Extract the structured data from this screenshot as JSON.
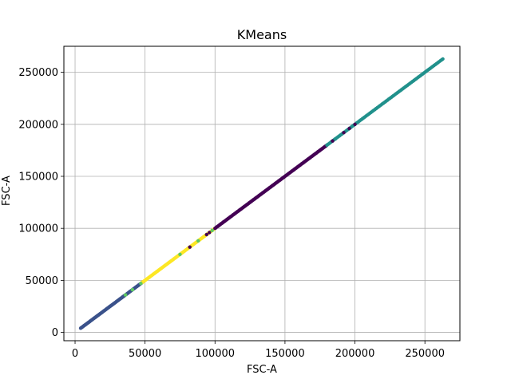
{
  "chart_data": {
    "type": "scatter",
    "title": "KMeans",
    "xlabel": "FSC-A",
    "ylabel": "FSC-A",
    "xlim": [
      -8000,
      275000
    ],
    "ylim": [
      -8000,
      275000
    ],
    "grid": true,
    "legend": "none",
    "xticks": [
      {
        "value": 0,
        "label": "0"
      },
      {
        "value": 50000,
        "label": "50000"
      },
      {
        "value": 100000,
        "label": "100000"
      },
      {
        "value": 150000,
        "label": "150000"
      },
      {
        "value": 200000,
        "label": "200000"
      },
      {
        "value": 250000,
        "label": "250000"
      }
    ],
    "yticks": [
      {
        "value": 0,
        "label": "0"
      },
      {
        "value": 50000,
        "label": "50000"
      },
      {
        "value": 100000,
        "label": "100000"
      },
      {
        "value": 150000,
        "label": "150000"
      },
      {
        "value": 200000,
        "label": "200000"
      },
      {
        "value": 250000,
        "label": "250000"
      }
    ],
    "clusters": [
      {
        "color": "#3b528b",
        "x_range": [
          4000,
          48000
        ],
        "step": 400
      },
      {
        "color": "#fde725",
        "x_range": [
          48000,
          100000
        ],
        "step": 550
      },
      {
        "color": "#440154",
        "x_range": [
          100000,
          180000
        ],
        "step": 500
      },
      {
        "color": "#21918c",
        "x_range": [
          180000,
          263000
        ],
        "step": 900
      }
    ],
    "extra_points": [
      {
        "x": 36000,
        "y": 36000,
        "color": "#5ec962"
      },
      {
        "x": 41000,
        "y": 41000,
        "color": "#5ec962"
      },
      {
        "x": 47000,
        "y": 47000,
        "color": "#5ec962"
      },
      {
        "x": 75000,
        "y": 75000,
        "color": "#5ec962"
      },
      {
        "x": 82000,
        "y": 82000,
        "color": "#440154"
      },
      {
        "x": 88000,
        "y": 88000,
        "color": "#5ec962"
      },
      {
        "x": 94000,
        "y": 94000,
        "color": "#440154"
      },
      {
        "x": 96000,
        "y": 96000,
        "color": "#440154"
      },
      {
        "x": 98000,
        "y": 98000,
        "color": "#5ec962"
      },
      {
        "x": 184000,
        "y": 184000,
        "color": "#440154"
      },
      {
        "x": 192000,
        "y": 192000,
        "color": "#440154"
      },
      {
        "x": 196000,
        "y": 196000,
        "color": "#440154"
      },
      {
        "x": 200000,
        "y": 200000,
        "color": "#440154"
      },
      {
        "x": 186000,
        "y": 186000,
        "color": "#21918c"
      }
    ]
  }
}
